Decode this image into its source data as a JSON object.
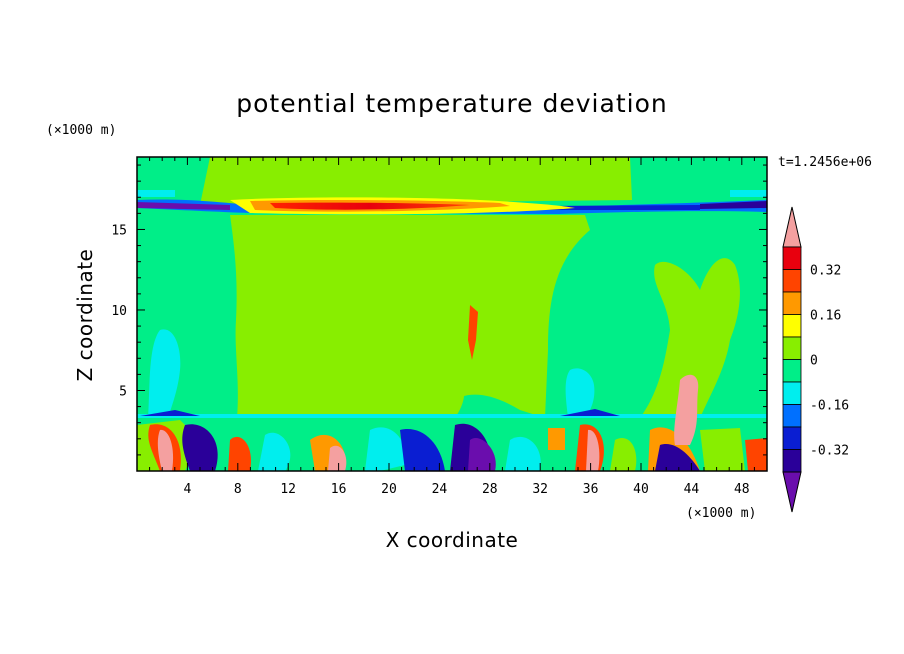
{
  "chart_data": {
    "type": "heatmap",
    "title": "potential temperature deviation",
    "xlabel": "X coordinate",
    "ylabel": "Z coordinate",
    "x_unit": "(×1000 m)",
    "y_unit": "(×1000 m)",
    "time_label": "t=1.2456e+06",
    "xlim": [
      0,
      50
    ],
    "ylim": [
      0,
      19.5
    ],
    "x_ticks": [
      4,
      8,
      12,
      16,
      20,
      24,
      28,
      32,
      36,
      40,
      44,
      48
    ],
    "y_ticks": [
      5,
      10,
      15
    ],
    "colorbar": {
      "levels": [
        -0.4,
        -0.32,
        -0.24,
        -0.16,
        -0.08,
        0,
        0.08,
        0.16,
        0.24,
        0.32,
        0.4
      ],
      "labels": [
        "0.32",
        "0.16",
        "0",
        "-0.16",
        "-0.32"
      ],
      "colors": [
        "#6a0dad",
        "#2a0099",
        "#0a1ed2",
        "#0070ff",
        "#00eeee",
        "#00ee88",
        "#88ee00",
        "#ffff00",
        "#ff9900",
        "#ff4400",
        "#e8000e",
        "#f4a0a0"
      ],
      "extend": "both"
    },
    "grid": false
  }
}
